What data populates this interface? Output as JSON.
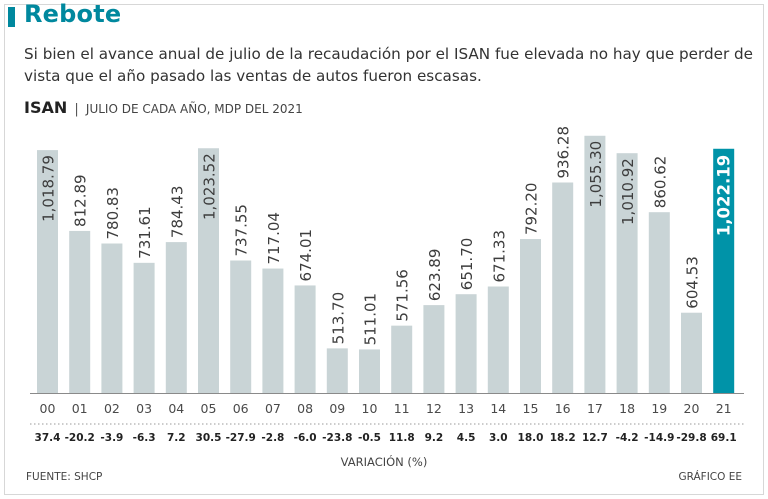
{
  "header": {
    "title": "Rebote",
    "subtitle": "Si bien el avance anual de julio de la recaudación por el ISAN fue elevada no hay que perder de vista que el año pasado las ventas de autos fueron escasas.",
    "chart_label": "ISAN",
    "chart_separator": "|",
    "chart_unit": "JULIO DE CADA AÑO, MDP DEL 2021"
  },
  "footer": {
    "source": "FUENTE: SHCP",
    "credit": "GRÁFICO EE"
  },
  "colors": {
    "accent": "#00889e",
    "bar": "#c9d4d6",
    "highlight_bar": "#0093a8"
  },
  "chart_data": {
    "type": "bar",
    "title": "ISAN",
    "subtitle": "JULIO DE CADA AÑO, MDP DEL 2021",
    "categories": [
      "00",
      "01",
      "02",
      "03",
      "04",
      "05",
      "06",
      "07",
      "08",
      "09",
      "10",
      "11",
      "12",
      "13",
      "14",
      "15",
      "16",
      "17",
      "18",
      "19",
      "20",
      "21"
    ],
    "values": [
      1018.79,
      812.89,
      780.83,
      731.61,
      784.43,
      1023.52,
      737.55,
      717.04,
      674.01,
      513.7,
      511.01,
      571.56,
      623.89,
      651.7,
      671.33,
      792.2,
      936.28,
      1055.3,
      1010.92,
      860.62,
      604.53,
      1022.19
    ],
    "value_labels": [
      "1,018.79",
      "812.89",
      "780.83",
      "731.61",
      "784.43",
      "1,023.52",
      "737.55",
      "717.04",
      "674.01",
      "513.70",
      "511.01",
      "571.56",
      "623.89",
      "651.70",
      "671.33",
      "792.20",
      "936.28",
      "1,055.30",
      "1,010.92",
      "860.62",
      "604.53",
      "1,022.19"
    ],
    "variation_labels": [
      "37.4",
      "-20.2",
      "-3.9",
      "-6.3",
      "7.2",
      "30.5",
      "-27.9",
      "-2.8",
      "-6.0",
      "-23.8",
      "-0.5",
      "11.8",
      "9.2",
      "4.5",
      "3.0",
      "18.0",
      "18.2",
      "12.7",
      "-4.2",
      "-14.9",
      "-29.8",
      "69.1"
    ],
    "variation_axis_label": "VARIACIÓN (%)",
    "highlight_index": 21,
    "ylim": [
      400,
      1070
    ],
    "xlabel": "",
    "ylabel": "",
    "grid": false
  }
}
